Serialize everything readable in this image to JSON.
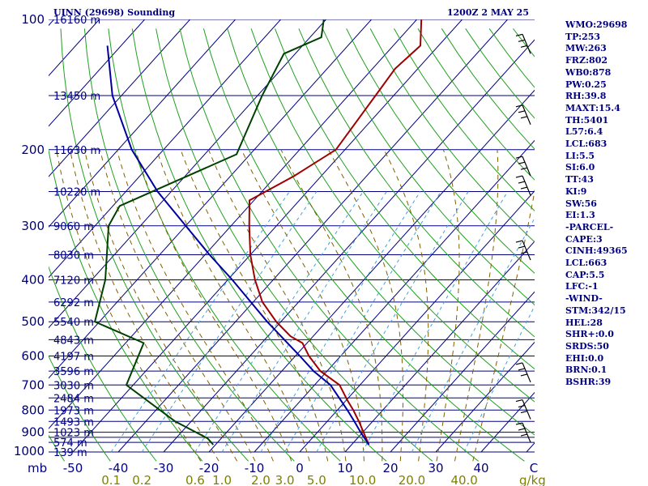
{
  "header": {
    "station_title": "UINN (29698) Sounding",
    "time_label": "1200Z  2 MAY 25"
  },
  "chart_data": {
    "type": "skew-t log-p sounding",
    "y_axis": {
      "label": "mb",
      "scale": "log",
      "range": [
        1000,
        100
      ],
      "ticks": [
        100,
        200,
        300,
        400,
        500,
        600,
        700,
        800,
        900,
        1000
      ]
    },
    "x_axis": {
      "label": "C",
      "range": [
        -50,
        40
      ],
      "skewed": true,
      "ticks": [
        -50,
        -40,
        -30,
        -20,
        -10,
        0,
        10,
        20,
        30,
        40
      ]
    },
    "mixing_ratio": {
      "unit": "g/kg",
      "labels": [
        "0.1",
        "0.2",
        "0.6",
        "1.0",
        "2.0",
        "3.0",
        "5.0",
        "10.0",
        "20.0",
        "40.0"
      ]
    },
    "isobars": [
      100,
      150,
      200,
      250,
      300,
      350,
      400,
      450,
      500,
      550,
      600,
      650,
      700,
      750,
      800,
      850,
      900,
      925,
      950,
      1000
    ],
    "heights": [
      {
        "p": 100,
        "label": "16160 m"
      },
      {
        "p": 150,
        "label": "13450 m"
      },
      {
        "p": 200,
        "label": "11630 m"
      },
      {
        "p": 250,
        "label": "10220 m"
      },
      {
        "p": 300,
        "label": "9060 m"
      },
      {
        "p": 350,
        "label": "8030 m"
      },
      {
        "p": 400,
        "label": "7120 m"
      },
      {
        "p": 450,
        "label": "6292 m"
      },
      {
        "p": 500,
        "label": "5540 m"
      },
      {
        "p": 550,
        "label": "4843 m"
      },
      {
        "p": 600,
        "label": "4197 m"
      },
      {
        "p": 650,
        "label": "3596 m"
      },
      {
        "p": 700,
        "label": "3030 m"
      },
      {
        "p": 750,
        "label": "2484 m"
      },
      {
        "p": 800,
        "label": "1973 m"
      },
      {
        "p": 850,
        "label": "1493 m"
      },
      {
        "p": 900,
        "label": "1023 m"
      },
      {
        "p": 950,
        "label": "574 m"
      },
      {
        "p": 1000,
        "label": "139 m"
      }
    ],
    "series": [
      {
        "color": "#a00000",
        "points": [
          [
            962,
            13.8
          ],
          [
            850,
            7.0
          ],
          [
            800,
            3.5
          ],
          [
            760,
            0.3
          ],
          [
            700,
            -4.5
          ],
          [
            650,
            -11.5
          ],
          [
            600,
            -17.0
          ],
          [
            560,
            -21.0
          ],
          [
            540,
            -25.0
          ],
          [
            500,
            -31.0
          ],
          [
            450,
            -38.0
          ],
          [
            400,
            -44.0
          ],
          [
            350,
            -50.0
          ],
          [
            300,
            -56.0
          ],
          [
            262,
            -61.0
          ],
          [
            230,
            -56.0
          ],
          [
            200,
            -52.0
          ],
          [
            150,
            -54.0
          ],
          [
            130,
            -55.0
          ],
          [
            115,
            -54.0
          ],
          [
            100,
            -59.0
          ]
        ]
      },
      {
        "color": "#004000",
        "points": [
          [
            962,
            -20.5
          ],
          [
            930,
            -23.0
          ],
          [
            850,
            -33.5
          ],
          [
            700,
            -51.5
          ],
          [
            560,
            -56.0
          ],
          [
            500,
            -71.0
          ],
          [
            400,
            -77.0
          ],
          [
            300,
            -87.0
          ],
          [
            270,
            -88.5
          ],
          [
            205,
            -73.0
          ],
          [
            150,
            -79.0
          ],
          [
            120,
            -82.5
          ],
          [
            110,
            -77.5
          ],
          [
            100,
            -80.5
          ]
        ]
      },
      {
        "color": "#0000a0",
        "points": [
          [
            962,
            13.8
          ],
          [
            900,
            9.5
          ],
          [
            850,
            6.0
          ],
          [
            800,
            2.2
          ],
          [
            700,
            -6.5
          ],
          [
            650,
            -13.0
          ],
          [
            600,
            -19.0
          ],
          [
            500,
            -33.0
          ],
          [
            400,
            -49.0
          ],
          [
            350,
            -59.0
          ],
          [
            300,
            -70.0
          ],
          [
            250,
            -83.0
          ],
          [
            200,
            -97.0
          ],
          [
            150,
            -112.0
          ],
          [
            115,
            -123.0
          ]
        ]
      }
    ],
    "wind_barbs": [
      {
        "p": 120
      },
      {
        "p": 175
      },
      {
        "p": 230
      },
      {
        "p": 255
      },
      {
        "p": 360
      },
      {
        "p": 690
      },
      {
        "p": 840
      },
      {
        "p": 950
      }
    ]
  },
  "stats": [
    "WMO:29698",
    "TP:253",
    "MW:263",
    "FRZ:802",
    "WB0:878",
    "PW:0.25",
    "RH:39.8",
    "MAXT:15.4",
    "TH:5401",
    "L57:6.4",
    "LCL:683",
    "LI:5.5",
    "SI:6.0",
    "TT:43",
    "KI:9",
    "SW:56",
    "EI:1.3",
    "-PARCEL-",
    "CAPE:3",
    "CINH:49365",
    "LCL:663",
    "CAP:5.5",
    "LFC:-1",
    "-WIND-",
    "STM:342/15",
    "HEL:28",
    "SHR+:0.0",
    "SRDS:50",
    "EHI:0.0",
    "BRN:0.1",
    "BSHR:39"
  ]
}
